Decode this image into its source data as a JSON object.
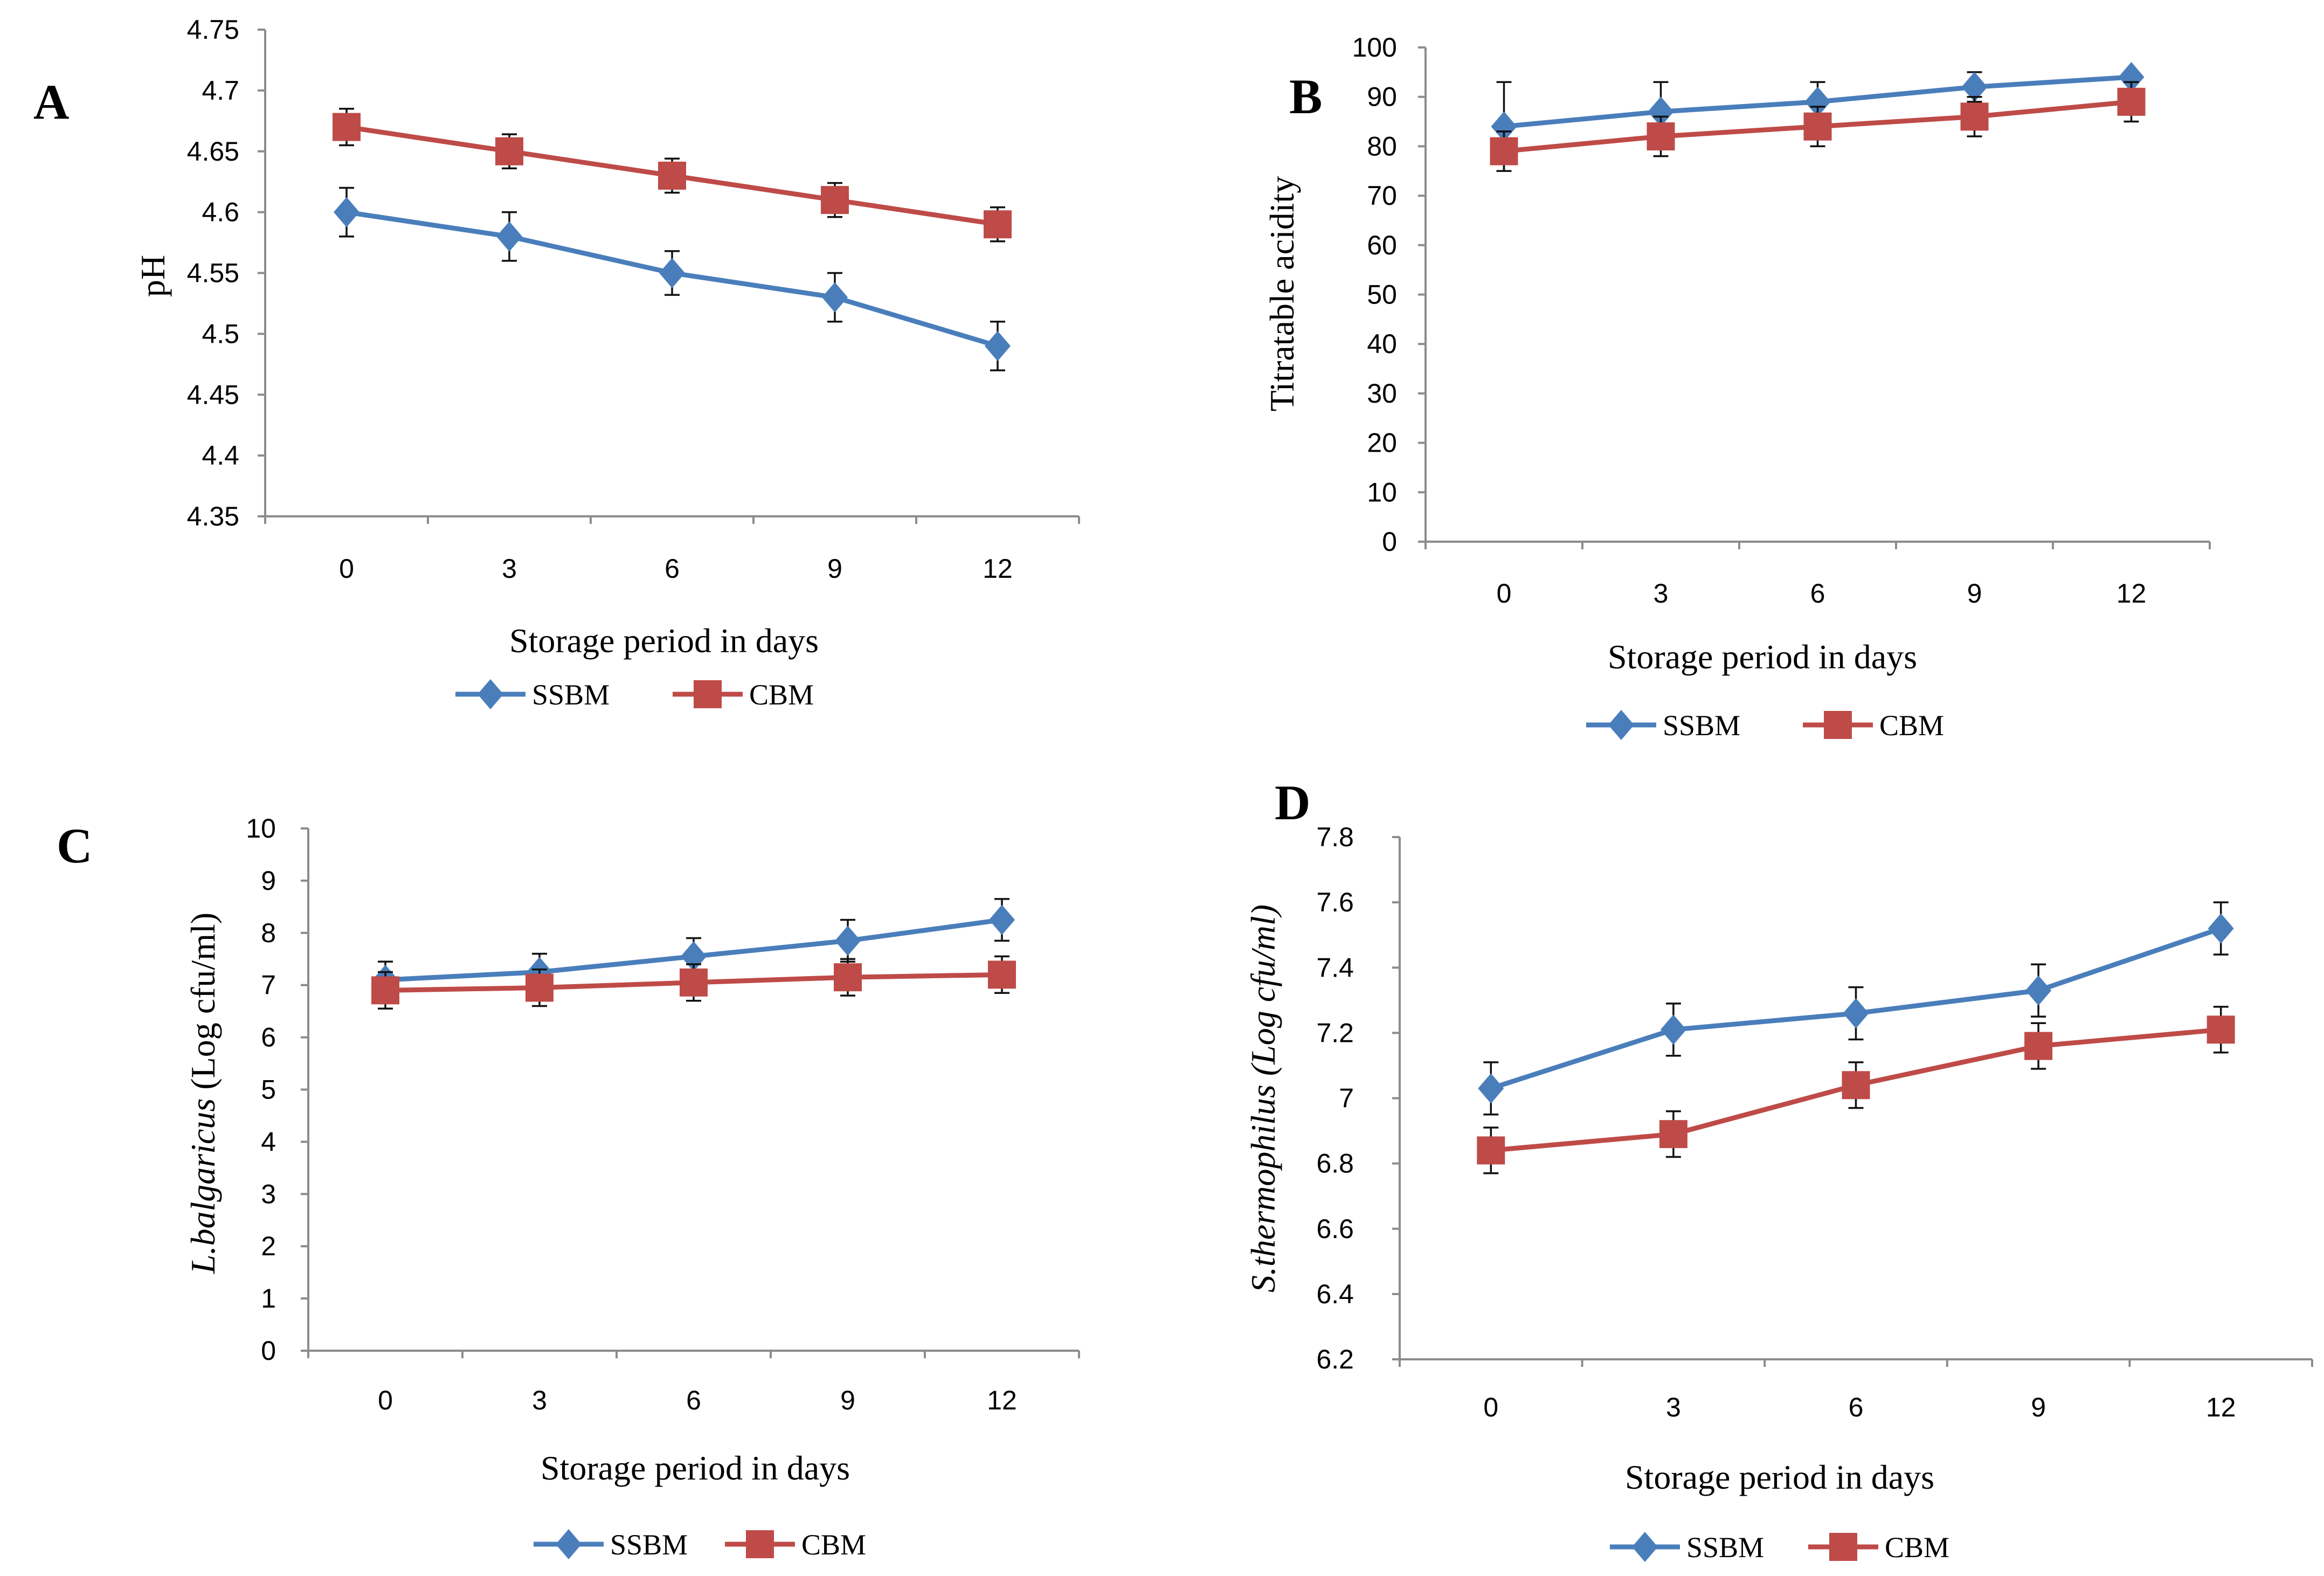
{
  "colors": {
    "ssbm": "#4a7ebb",
    "cbm": "#be4b48",
    "axis": "#8c8c8c",
    "text": "#000000"
  },
  "legend": {
    "ssbm": "SSBM",
    "cbm": "CBM"
  },
  "chart_data": [
    {
      "panel": "A",
      "type": "line",
      "xlabel": "Storage period in days",
      "ylabel": "pH",
      "ylabel_italic": false,
      "categories": [
        "0",
        "3",
        "6",
        "9",
        "12"
      ],
      "yticks": [
        "4.35",
        "4.4",
        "4.45",
        "4.5",
        "4.55",
        "4.6",
        "4.65",
        "4.7",
        "4.75"
      ],
      "ylim": [
        4.35,
        4.75
      ],
      "series": [
        {
          "name": "SSBM",
          "marker": "diamond",
          "values": [
            4.6,
            4.58,
            4.55,
            4.53,
            4.49
          ],
          "errors": [
            0.02,
            0.02,
            0.018,
            0.02,
            0.02
          ]
        },
        {
          "name": "CBM",
          "marker": "square",
          "values": [
            4.67,
            4.65,
            4.63,
            4.61,
            4.59
          ],
          "errors": [
            0.015,
            0.014,
            0.014,
            0.014,
            0.014
          ]
        }
      ]
    },
    {
      "panel": "B",
      "type": "line",
      "xlabel": "Storage period in days",
      "ylabel": "Titratable acidity",
      "ylabel_italic": false,
      "categories": [
        "0",
        "3",
        "6",
        "9",
        "12"
      ],
      "yticks": [
        "0",
        "10",
        "20",
        "30",
        "40",
        "50",
        "60",
        "70",
        "80",
        "90",
        "100"
      ],
      "ylim": [
        0,
        100
      ],
      "series": [
        {
          "name": "SSBM",
          "marker": "diamond",
          "values": [
            84,
            87,
            89,
            92,
            94
          ],
          "errors": [
            9,
            6,
            4,
            3,
            0
          ]
        },
        {
          "name": "CBM",
          "marker": "square",
          "values": [
            79,
            82,
            84,
            86,
            89
          ],
          "errors": [
            4,
            4,
            4,
            4,
            4
          ]
        }
      ]
    },
    {
      "panel": "C",
      "type": "line",
      "xlabel": "Storage period in days",
      "ylabel": "L.balgaricus (Log cfu/ml)",
      "ylabel_italic": true,
      "ylabel_italic_part": "L.balgaricus",
      "ylabel_rest": " (Log cfu/ml)",
      "categories": [
        "0",
        "3",
        "6",
        "9",
        "12"
      ],
      "yticks": [
        "0",
        "1",
        "2",
        "3",
        "4",
        "5",
        "6",
        "7",
        "8",
        "9",
        "10"
      ],
      "ylim": [
        0,
        10
      ],
      "series": [
        {
          "name": "SSBM",
          "marker": "diamond",
          "values": [
            7.1,
            7.25,
            7.55,
            7.85,
            8.25
          ],
          "errors": [
            0.35,
            0.35,
            0.35,
            0.4,
            0.4
          ]
        },
        {
          "name": "CBM",
          "marker": "square",
          "values": [
            6.9,
            6.95,
            7.05,
            7.15,
            7.2
          ],
          "errors": [
            0.35,
            0.35,
            0.35,
            0.35,
            0.35
          ]
        }
      ]
    },
    {
      "panel": "D",
      "type": "line",
      "xlabel": "Storage period in days",
      "ylabel": "S.thermophilus (Log cfu/ml)",
      "ylabel_italic": true,
      "categories": [
        "0",
        "3",
        "6",
        "9",
        "12"
      ],
      "yticks": [
        "6.2",
        "6.4",
        "6.6",
        "6.8",
        "7",
        "7.2",
        "7.4",
        "7.6",
        "7.8"
      ],
      "ylim": [
        6.2,
        7.8
      ],
      "series": [
        {
          "name": "SSBM",
          "marker": "diamond",
          "values": [
            7.03,
            7.21,
            7.26,
            7.33,
            7.52
          ],
          "errors": [
            0.08,
            0.08,
            0.08,
            0.08,
            0.08
          ]
        },
        {
          "name": "CBM",
          "marker": "square",
          "values": [
            6.84,
            6.89,
            7.04,
            7.16,
            7.21
          ],
          "errors": [
            0.07,
            0.07,
            0.07,
            0.07,
            0.07
          ]
        }
      ]
    }
  ]
}
